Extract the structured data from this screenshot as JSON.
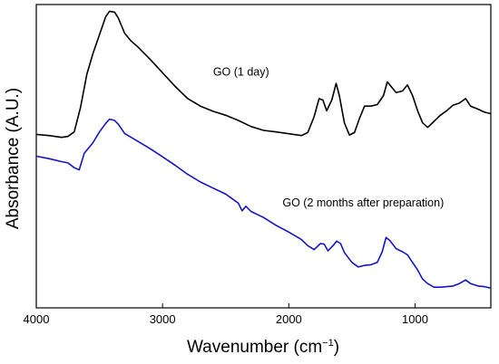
{
  "chart_data": {
    "type": "line",
    "xlabel": "Wavenumber (cm",
    "xlabel_sup": "−1",
    "xlabel_tail": ")",
    "ylabel": "Absorbance (A.U.)",
    "xlim": [
      4000,
      400
    ],
    "x_reversed": true,
    "y_ticks_shown": false,
    "grid": false,
    "ylim": [
      0,
      1
    ],
    "x_ticks": [
      {
        "value": 4000,
        "label": "4000"
      },
      {
        "value": 3000,
        "label": "3000"
      },
      {
        "value": 2000,
        "label": "2000"
      },
      {
        "value": 1000,
        "label": "1000"
      }
    ],
    "series": [
      {
        "name": "GO (1 day)",
        "color": "#000000",
        "label_at": [
          2600,
          0.765
        ],
        "points": [
          [
            4000,
            0.572
          ],
          [
            3900,
            0.568
          ],
          [
            3800,
            0.562
          ],
          [
            3750,
            0.565
          ],
          [
            3700,
            0.58
          ],
          [
            3650,
            0.66
          ],
          [
            3600,
            0.77
          ],
          [
            3550,
            0.84
          ],
          [
            3500,
            0.9
          ],
          [
            3450,
            0.96
          ],
          [
            3420,
            0.978
          ],
          [
            3380,
            0.975
          ],
          [
            3350,
            0.955
          ],
          [
            3300,
            0.905
          ],
          [
            3250,
            0.88
          ],
          [
            3200,
            0.862
          ],
          [
            3100,
            0.82
          ],
          [
            3000,
            0.775
          ],
          [
            2900,
            0.73
          ],
          [
            2800,
            0.69
          ],
          [
            2700,
            0.665
          ],
          [
            2600,
            0.648
          ],
          [
            2500,
            0.635
          ],
          [
            2400,
            0.618
          ],
          [
            2300,
            0.598
          ],
          [
            2200,
            0.585
          ],
          [
            2100,
            0.58
          ],
          [
            2000,
            0.574
          ],
          [
            1900,
            0.568
          ],
          [
            1850,
            0.578
          ],
          [
            1800,
            0.63
          ],
          [
            1760,
            0.69
          ],
          [
            1730,
            0.685
          ],
          [
            1700,
            0.65
          ],
          [
            1660,
            0.685
          ],
          [
            1625,
            0.74
          ],
          [
            1600,
            0.7
          ],
          [
            1560,
            0.61
          ],
          [
            1520,
            0.57
          ],
          [
            1480,
            0.578
          ],
          [
            1440,
            0.625
          ],
          [
            1400,
            0.665
          ],
          [
            1350,
            0.665
          ],
          [
            1300,
            0.67
          ],
          [
            1250,
            0.7
          ],
          [
            1220,
            0.745
          ],
          [
            1190,
            0.73
          ],
          [
            1150,
            0.71
          ],
          [
            1100,
            0.715
          ],
          [
            1060,
            0.735
          ],
          [
            1020,
            0.7
          ],
          [
            980,
            0.65
          ],
          [
            940,
            0.61
          ],
          [
            900,
            0.595
          ],
          [
            850,
            0.615
          ],
          [
            800,
            0.635
          ],
          [
            750,
            0.65
          ],
          [
            700,
            0.668
          ],
          [
            650,
            0.675
          ],
          [
            600,
            0.69
          ],
          [
            560,
            0.665
          ],
          [
            500,
            0.655
          ],
          [
            450,
            0.645
          ],
          [
            400,
            0.64
          ]
        ]
      },
      {
        "name": "GO (2 months after preparation)",
        "color": "#1414c8",
        "label_at": [
          2050,
          0.335
        ],
        "points": [
          [
            4000,
            0.5
          ],
          [
            3900,
            0.492
          ],
          [
            3800,
            0.482
          ],
          [
            3750,
            0.478
          ],
          [
            3700,
            0.462
          ],
          [
            3660,
            0.455
          ],
          [
            3620,
            0.51
          ],
          [
            3550,
            0.545
          ],
          [
            3500,
            0.58
          ],
          [
            3450,
            0.608
          ],
          [
            3420,
            0.622
          ],
          [
            3380,
            0.618
          ],
          [
            3350,
            0.605
          ],
          [
            3300,
            0.575
          ],
          [
            3200,
            0.55
          ],
          [
            3100,
            0.525
          ],
          [
            3000,
            0.498
          ],
          [
            2900,
            0.47
          ],
          [
            2800,
            0.44
          ],
          [
            2700,
            0.415
          ],
          [
            2600,
            0.395
          ],
          [
            2500,
            0.375
          ],
          [
            2400,
            0.345
          ],
          [
            2370,
            0.32
          ],
          [
            2340,
            0.335
          ],
          [
            2300,
            0.318
          ],
          [
            2200,
            0.298
          ],
          [
            2100,
            0.272
          ],
          [
            2000,
            0.25
          ],
          [
            1900,
            0.225
          ],
          [
            1850,
            0.205
          ],
          [
            1800,
            0.192
          ],
          [
            1750,
            0.212
          ],
          [
            1720,
            0.21
          ],
          [
            1690,
            0.188
          ],
          [
            1650,
            0.205
          ],
          [
            1620,
            0.22
          ],
          [
            1590,
            0.212
          ],
          [
            1560,
            0.182
          ],
          [
            1500,
            0.15
          ],
          [
            1450,
            0.135
          ],
          [
            1400,
            0.14
          ],
          [
            1350,
            0.142
          ],
          [
            1300,
            0.15
          ],
          [
            1260,
            0.185
          ],
          [
            1230,
            0.232
          ],
          [
            1200,
            0.222
          ],
          [
            1150,
            0.195
          ],
          [
            1100,
            0.185
          ],
          [
            1060,
            0.175
          ],
          [
            1020,
            0.15
          ],
          [
            980,
            0.125
          ],
          [
            940,
            0.095
          ],
          [
            900,
            0.08
          ],
          [
            850,
            0.068
          ],
          [
            800,
            0.068
          ],
          [
            750,
            0.07
          ],
          [
            700,
            0.072
          ],
          [
            650,
            0.08
          ],
          [
            600,
            0.092
          ],
          [
            560,
            0.08
          ],
          [
            500,
            0.072
          ],
          [
            450,
            0.07
          ],
          [
            400,
            0.065
          ]
        ]
      }
    ]
  }
}
